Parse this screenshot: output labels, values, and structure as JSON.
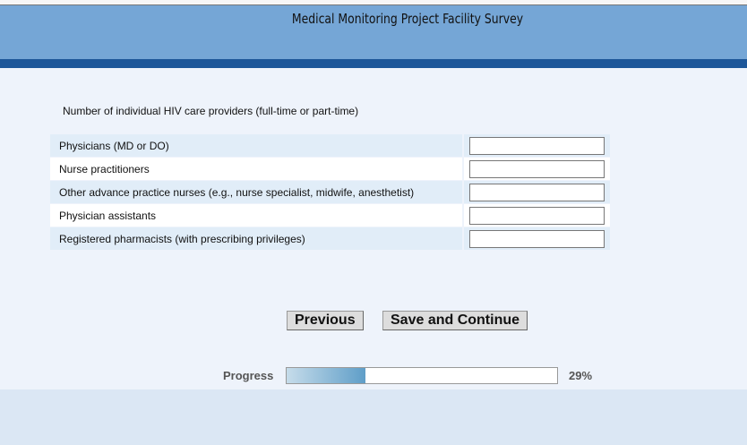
{
  "header": {
    "title": "Medical Monitoring Project Facility Survey"
  },
  "question": "Number of individual HIV care providers (full-time or part-time)",
  "rows": [
    {
      "label": "Physicians (MD or DO)",
      "value": ""
    },
    {
      "label": "Nurse practitioners",
      "value": ""
    },
    {
      "label": "Other advance practice nurses (e.g., nurse specialist, midwife, anesthetist)",
      "value": ""
    },
    {
      "label": "Physician assistants",
      "value": ""
    },
    {
      "label": "Registered pharmacists (with prescribing privileges)",
      "value": ""
    }
  ],
  "buttons": {
    "previous": "Previous",
    "save": "Save and Continue"
  },
  "progress": {
    "label": "Progress",
    "percent": 29,
    "text": "29%"
  }
}
